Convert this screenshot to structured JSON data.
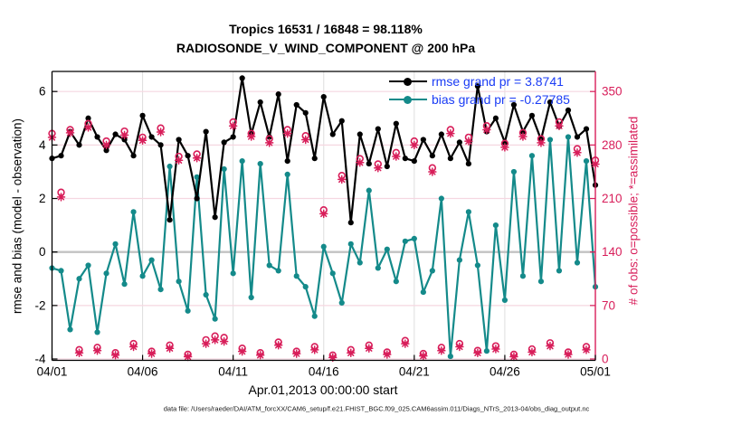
{
  "header": {
    "title_line1": "Tropics 16531 / 16848 = 98.118%",
    "title_line2": "RADIOSONDE_V_WIND_COMPONENT @ 200 hPa"
  },
  "legend": {
    "rmse_label": "rmse grand pr = 3.8741",
    "bias_label": "bias grand pr = -0.27785"
  },
  "axes": {
    "left_label": "rmse and bias (model - observation)",
    "right_label": "# of obs: o=possible; *=assimilated",
    "x_label": "Apr.01,2013 00:00:00 start"
  },
  "footer": {
    "data_file": "data file: /Users/raeder/DAI/ATM_forcXX/CAM6_setup/f.e21.FHIST_BGC.f09_025.CAM6assim.011/Diags_NTrS_2013-04/obs_diag_output.nc"
  },
  "colors": {
    "black": "#000000",
    "teal": "#148A8A",
    "pink": "#D81E5A",
    "legend_blue": "#1A3CF5",
    "grid_pink": "#F5D7E1",
    "grid_gray": "#DEDEDE",
    "zero_line": "#C2C2C2"
  },
  "chart_data": {
    "type": "line",
    "title": "Tropics 16531 / 16848 = 98.118% | RADIOSONDE_V_WIND_COMPONENT @ 200 hPa",
    "xlabel": "Apr.01,2013 00:00:00 start",
    "ylabel_left": "rmse and bias (model - observation)",
    "ylabel_right": "# of obs: o=possible; *=assimilated",
    "grid": true,
    "legend_position": "top-right-inside",
    "xlim_days": [
      0,
      30
    ],
    "ylim_left": [
      -4.05,
      6.75
    ],
    "right_axis_scale": {
      "units_per_left_unit": 35,
      "right_zero_at_left_value": -4
    },
    "x_tick_days": [
      0,
      5,
      10,
      15,
      20,
      25,
      30
    ],
    "x_tick_labels": [
      "04/01",
      "04/06",
      "04/11",
      "04/16",
      "04/21",
      "04/26",
      "05/01"
    ],
    "yticks_left": {
      "values": [
        -4,
        -2,
        0,
        2,
        4,
        6
      ],
      "labels": [
        "-4",
        "-2",
        "0",
        "2",
        "4",
        "6"
      ]
    },
    "yticks_right": {
      "values": [
        0,
        70,
        140,
        210,
        280,
        350
      ],
      "labels": [
        "0",
        "70",
        "140",
        "210",
        "280",
        "350"
      ]
    },
    "x_days": [
      0,
      0.5,
      1,
      1.5,
      2,
      2.5,
      3,
      3.5,
      4,
      4.5,
      5,
      5.5,
      6,
      6.5,
      7,
      7.5,
      8,
      8.5,
      9,
      9.5,
      10,
      10.5,
      11,
      11.5,
      12,
      12.5,
      13,
      13.5,
      14,
      14.5,
      15,
      15.5,
      16,
      16.5,
      17,
      17.5,
      18,
      18.5,
      19,
      19.5,
      20,
      20.5,
      21,
      21.5,
      22,
      22.5,
      23,
      23.5,
      24,
      24.5,
      25,
      25.5,
      26,
      26.5,
      27,
      27.5,
      28,
      28.5,
      29,
      29.5,
      30
    ],
    "series": [
      {
        "name": "rmse",
        "axis": "left",
        "color_key": "black",
        "marker": "filled-circle",
        "line": true,
        "grand_value": 3.8741,
        "values": [
          3.5,
          3.6,
          4.5,
          4.0,
          5.0,
          4.3,
          3.8,
          4.4,
          4.2,
          3.6,
          5.1,
          4.3,
          4.0,
          1.2,
          4.2,
          3.6,
          2.0,
          4.5,
          1.3,
          4.1,
          4.3,
          6.5,
          4.4,
          5.6,
          4.3,
          5.9,
          3.4,
          5.5,
          5.2,
          3.5,
          5.8,
          4.4,
          4.9,
          1.1,
          4.4,
          3.3,
          4.6,
          3.2,
          4.8,
          3.5,
          3.4,
          4.2,
          3.6,
          4.4,
          3.5,
          4.1,
          3.3,
          6.2,
          4.5,
          5.0,
          4.1,
          5.5,
          4.5,
          5.1,
          4.2,
          5.6,
          4.7,
          5.3,
          4.3,
          4.6,
          2.5
        ]
      },
      {
        "name": "bias",
        "axis": "left",
        "color_key": "teal",
        "marker": "filled-circle",
        "line": true,
        "grand_value": -0.27785,
        "values": [
          -0.6,
          -0.7,
          -2.9,
          -1.0,
          -0.5,
          -3.0,
          -0.8,
          0.3,
          -1.2,
          1.5,
          -0.9,
          -0.3,
          -1.4,
          3.2,
          -1.1,
          -2.2,
          2.8,
          -1.6,
          -2.5,
          3.1,
          -0.8,
          3.4,
          -1.7,
          3.3,
          -0.5,
          -0.7,
          2.9,
          -0.9,
          -1.3,
          -2.4,
          0.2,
          -0.8,
          -1.9,
          0.3,
          -0.4,
          2.3,
          -0.6,
          0.1,
          -1.1,
          0.4,
          0.5,
          -1.5,
          -0.7,
          2.0,
          -3.9,
          -0.3,
          1.5,
          -0.5,
          -3.7,
          1.0,
          -1.8,
          3.0,
          -0.9,
          3.6,
          -1.1,
          4.2,
          -0.7,
          4.3,
          -0.4,
          3.4,
          -1.3
        ]
      },
      {
        "name": "possible",
        "axis": "right",
        "color_key": "pink",
        "marker": "open-circle",
        "line": false,
        "total": 16848,
        "values": [
          295,
          218,
          300,
          12,
          308,
          15,
          285,
          8,
          298,
          20,
          290,
          10,
          302,
          18,
          265,
          6,
          268,
          25,
          30,
          28,
          310,
          14,
          295,
          8,
          288,
          22,
          300,
          10,
          292,
          16,
          195,
          5,
          240,
          12,
          262,
          18,
          255,
          9,
          270,
          24,
          285,
          7,
          250,
          15,
          300,
          20,
          290,
          11,
          305,
          17,
          282,
          6,
          296,
          13,
          288,
          21,
          310,
          9,
          275,
          16,
          260
        ]
      },
      {
        "name": "assimilated",
        "axis": "right",
        "color_key": "pink",
        "marker": "asterisk",
        "line": false,
        "total": 16531,
        "values": [
          290,
          212,
          296,
          8,
          303,
          11,
          280,
          5,
          293,
          16,
          286,
          7,
          297,
          14,
          260,
          3,
          263,
          20,
          25,
          23,
          305,
          10,
          291,
          5,
          283,
          18,
          295,
          7,
          287,
          12,
          190,
          2,
          235,
          8,
          257,
          14,
          250,
          6,
          265,
          20,
          280,
          4,
          245,
          11,
          295,
          16,
          285,
          8,
          300,
          13,
          277,
          3,
          291,
          9,
          283,
          17,
          305,
          6,
          270,
          12,
          255
        ]
      }
    ]
  }
}
